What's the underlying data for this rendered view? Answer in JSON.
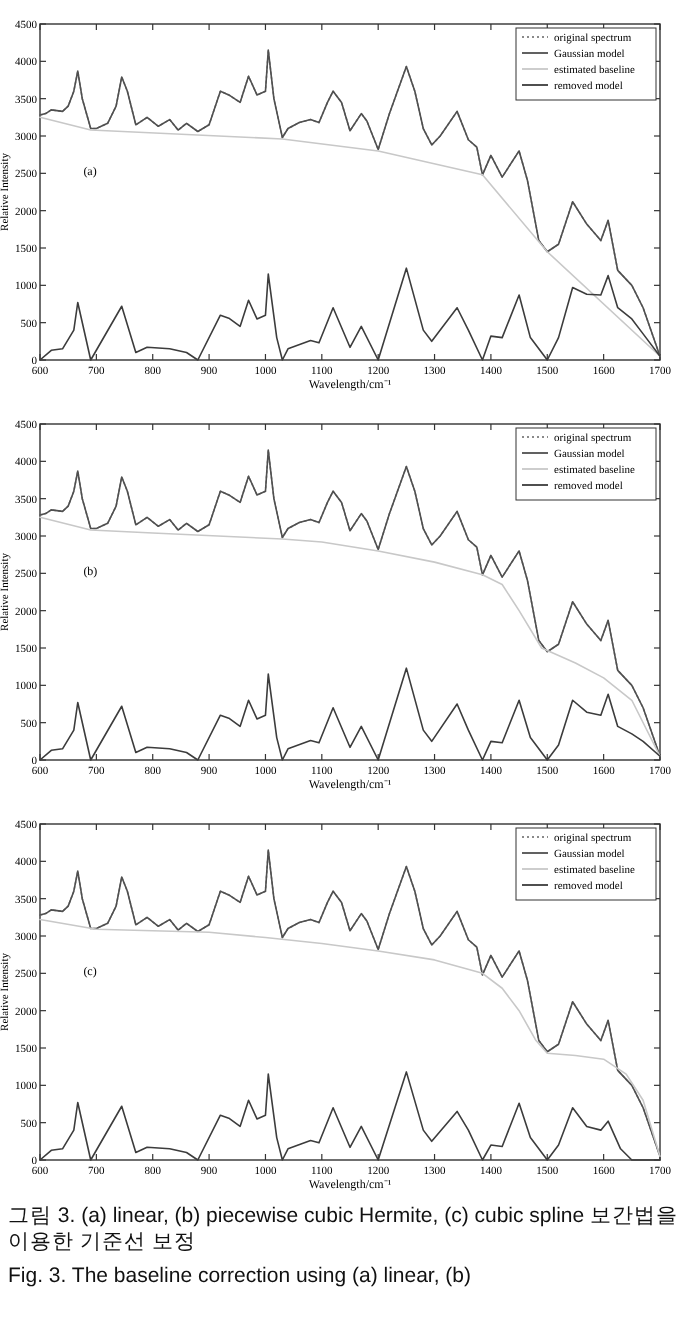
{
  "chart_data": [
    {
      "type": "line",
      "xlabel": "Wavelength/cm⁻¹",
      "ylabel": "Relative Intensity",
      "xlim": [
        600,
        1700
      ],
      "ylim": [
        0,
        4500
      ],
      "xticks": [
        600,
        700,
        800,
        900,
        1000,
        1100,
        1200,
        1300,
        1400,
        1500,
        1600,
        1700
      ],
      "yticks": [
        0,
        500,
        1000,
        1500,
        2000,
        2500,
        3000,
        3500,
        4000,
        4500
      ],
      "legend": "top right",
      "grid": false,
      "annotations": [
        "(a)"
      ],
      "series": [
        {
          "name": "original spectrum",
          "color": "#8a8a8a",
          "line_style": "dotted",
          "x": [
            600,
            610,
            620,
            640,
            650,
            660,
            667,
            675,
            690,
            700,
            720,
            735,
            745,
            755,
            770,
            790,
            810,
            830,
            845,
            860,
            880,
            900,
            920,
            935,
            955,
            970,
            985,
            1000,
            1005,
            1015,
            1030,
            1040,
            1060,
            1080,
            1095,
            1110,
            1120,
            1135,
            1150,
            1170,
            1180,
            1200,
            1220,
            1250,
            1265,
            1280,
            1295,
            1310,
            1340,
            1360,
            1375,
            1385,
            1400,
            1420,
            1450,
            1465,
            1485,
            1500,
            1520,
            1545,
            1570,
            1595,
            1608,
            1625,
            1650,
            1670,
            1700
          ],
          "values": [
            3280,
            3300,
            3350,
            3330,
            3400,
            3600,
            3870,
            3500,
            3100,
            3100,
            3170,
            3400,
            3790,
            3600,
            3150,
            3250,
            3130,
            3220,
            3080,
            3170,
            3060,
            3150,
            3600,
            3550,
            3450,
            3800,
            3550,
            3600,
            4150,
            3500,
            2980,
            3100,
            3180,
            3220,
            3180,
            3450,
            3600,
            3450,
            3070,
            3300,
            3200,
            2820,
            3300,
            3930,
            3600,
            3100,
            2880,
            3000,
            3330,
            2950,
            2850,
            2480,
            2740,
            2450,
            2800,
            2400,
            1600,
            1450,
            1550,
            2120,
            1820,
            1600,
            1870,
            1200,
            1000,
            700,
            50
          ]
        },
        {
          "name": "Gaussian model",
          "color": "#505050",
          "line_style": "solid",
          "x": [
            600,
            610,
            620,
            640,
            650,
            660,
            667,
            675,
            690,
            700,
            720,
            735,
            745,
            755,
            770,
            790,
            810,
            830,
            845,
            860,
            880,
            900,
            920,
            935,
            955,
            970,
            985,
            1000,
            1005,
            1015,
            1030,
            1040,
            1060,
            1080,
            1095,
            1110,
            1120,
            1135,
            1150,
            1170,
            1180,
            1200,
            1220,
            1250,
            1265,
            1280,
            1295,
            1310,
            1340,
            1360,
            1375,
            1385,
            1400,
            1420,
            1450,
            1465,
            1485,
            1500,
            1520,
            1545,
            1570,
            1595,
            1608,
            1625,
            1650,
            1670,
            1700
          ],
          "values": [
            3280,
            3300,
            3350,
            3330,
            3400,
            3600,
            3870,
            3500,
            3100,
            3100,
            3170,
            3400,
            3790,
            3600,
            3150,
            3250,
            3130,
            3220,
            3080,
            3170,
            3060,
            3150,
            3600,
            3550,
            3450,
            3800,
            3550,
            3600,
            4150,
            3500,
            2980,
            3100,
            3180,
            3220,
            3180,
            3450,
            3600,
            3450,
            3070,
            3300,
            3200,
            2820,
            3300,
            3930,
            3600,
            3100,
            2880,
            3000,
            3330,
            2950,
            2850,
            2480,
            2740,
            2450,
            2800,
            2400,
            1600,
            1450,
            1550,
            2120,
            1820,
            1600,
            1870,
            1200,
            1000,
            700,
            50
          ]
        },
        {
          "name": "estimated baseline",
          "color": "#c8c8c8",
          "line_style": "solid",
          "x": [
            600,
            690,
            1030,
            1200,
            1385,
            1500,
            1700
          ],
          "values": [
            3250,
            3080,
            2960,
            2800,
            2480,
            1450,
            50
          ]
        },
        {
          "name": "removed model",
          "color": "#3c3c3c",
          "line_style": "solid",
          "x": [
            600,
            620,
            640,
            660,
            667,
            690,
            745,
            770,
            790,
            830,
            860,
            880,
            920,
            935,
            955,
            970,
            985,
            1000,
            1005,
            1020,
            1030,
            1040,
            1080,
            1095,
            1120,
            1150,
            1170,
            1200,
            1250,
            1280,
            1295,
            1340,
            1360,
            1385,
            1400,
            1420,
            1450,
            1470,
            1500,
            1520,
            1545,
            1570,
            1595,
            1608,
            1625,
            1650,
            1670,
            1700
          ],
          "values": [
            0,
            130,
            150,
            400,
            770,
            0,
            720,
            100,
            170,
            150,
            100,
            0,
            600,
            560,
            450,
            800,
            550,
            600,
            1150,
            300,
            0,
            150,
            260,
            230,
            700,
            170,
            450,
            0,
            1230,
            400,
            250,
            700,
            400,
            0,
            320,
            300,
            870,
            300,
            0,
            300,
            970,
            880,
            870,
            1130,
            700,
            550,
            350,
            50
          ]
        }
      ]
    },
    {
      "type": "line",
      "xlabel": "Wavelength/cm⁻¹",
      "ylabel": "Relative Intensity",
      "xlim": [
        600,
        1700
      ],
      "ylim": [
        0,
        4500
      ],
      "xticks": [
        600,
        700,
        800,
        900,
        1000,
        1100,
        1200,
        1300,
        1400,
        1500,
        1600,
        1700
      ],
      "yticks": [
        0,
        500,
        1000,
        1500,
        2000,
        2500,
        3000,
        3500,
        4000,
        4500
      ],
      "legend": "top right",
      "grid": false,
      "annotations": [
        "(b)"
      ],
      "series": [
        {
          "name": "original spectrum",
          "color": "#8a8a8a",
          "line_style": "dotted",
          "x": [
            600,
            610,
            620,
            640,
            650,
            660,
            667,
            675,
            690,
            700,
            720,
            735,
            745,
            755,
            770,
            790,
            810,
            830,
            845,
            860,
            880,
            900,
            920,
            935,
            955,
            970,
            985,
            1000,
            1005,
            1015,
            1030,
            1040,
            1060,
            1080,
            1095,
            1110,
            1120,
            1135,
            1150,
            1170,
            1180,
            1200,
            1220,
            1250,
            1265,
            1280,
            1295,
            1310,
            1340,
            1360,
            1375,
            1385,
            1400,
            1420,
            1450,
            1465,
            1485,
            1500,
            1520,
            1545,
            1570,
            1595,
            1608,
            1625,
            1650,
            1670,
            1700
          ],
          "values": [
            3280,
            3300,
            3350,
            3330,
            3400,
            3600,
            3870,
            3500,
            3100,
            3100,
            3170,
            3400,
            3790,
            3600,
            3150,
            3250,
            3130,
            3220,
            3080,
            3170,
            3060,
            3150,
            3600,
            3550,
            3450,
            3800,
            3550,
            3600,
            4150,
            3500,
            2980,
            3100,
            3180,
            3220,
            3180,
            3450,
            3600,
            3450,
            3070,
            3300,
            3200,
            2820,
            3300,
            3930,
            3600,
            3100,
            2880,
            3000,
            3330,
            2950,
            2850,
            2480,
            2740,
            2450,
            2800,
            2400,
            1600,
            1450,
            1550,
            2120,
            1820,
            1600,
            1870,
            1200,
            1000,
            700,
            50
          ]
        },
        {
          "name": "Gaussian model",
          "color": "#505050",
          "line_style": "solid",
          "x": [
            600,
            610,
            620,
            640,
            650,
            660,
            667,
            675,
            690,
            700,
            720,
            735,
            745,
            755,
            770,
            790,
            810,
            830,
            845,
            860,
            880,
            900,
            920,
            935,
            955,
            970,
            985,
            1000,
            1005,
            1015,
            1030,
            1040,
            1060,
            1080,
            1095,
            1110,
            1120,
            1135,
            1150,
            1170,
            1180,
            1200,
            1220,
            1250,
            1265,
            1280,
            1295,
            1310,
            1340,
            1360,
            1375,
            1385,
            1400,
            1420,
            1450,
            1465,
            1485,
            1500,
            1520,
            1545,
            1570,
            1595,
            1608,
            1625,
            1650,
            1670,
            1700
          ],
          "values": [
            3280,
            3300,
            3350,
            3330,
            3400,
            3600,
            3870,
            3500,
            3100,
            3100,
            3170,
            3400,
            3790,
            3600,
            3150,
            3250,
            3130,
            3220,
            3080,
            3170,
            3060,
            3150,
            3600,
            3550,
            3450,
            3800,
            3550,
            3600,
            4150,
            3500,
            2980,
            3100,
            3180,
            3220,
            3180,
            3450,
            3600,
            3450,
            3070,
            3300,
            3200,
            2820,
            3300,
            3930,
            3600,
            3100,
            2880,
            3000,
            3330,
            2950,
            2850,
            2480,
            2740,
            2450,
            2800,
            2400,
            1600,
            1450,
            1550,
            2120,
            1820,
            1600,
            1870,
            1200,
            1000,
            700,
            50
          ]
        },
        {
          "name": "estimated baseline",
          "color": "#c8c8c8",
          "line_style": "solid",
          "x": [
            600,
            690,
            800,
            1030,
            1100,
            1200,
            1300,
            1385,
            1420,
            1450,
            1490,
            1550,
            1600,
            1650,
            1700
          ],
          "values": [
            3250,
            3080,
            3040,
            2960,
            2920,
            2800,
            2650,
            2480,
            2350,
            2000,
            1500,
            1300,
            1100,
            800,
            50
          ]
        },
        {
          "name": "removed model",
          "color": "#3c3c3c",
          "line_style": "solid",
          "x": [
            600,
            620,
            640,
            660,
            667,
            690,
            745,
            770,
            790,
            830,
            860,
            880,
            920,
            935,
            955,
            970,
            985,
            1000,
            1005,
            1020,
            1030,
            1040,
            1080,
            1095,
            1120,
            1150,
            1170,
            1200,
            1250,
            1280,
            1295,
            1340,
            1360,
            1385,
            1400,
            1420,
            1450,
            1470,
            1500,
            1520,
            1545,
            1570,
            1595,
            1608,
            1625,
            1650,
            1670,
            1700
          ],
          "values": [
            0,
            130,
            150,
            400,
            770,
            0,
            720,
            100,
            170,
            150,
            100,
            0,
            600,
            560,
            450,
            800,
            550,
            600,
            1150,
            300,
            0,
            150,
            260,
            230,
            700,
            170,
            450,
            0,
            1230,
            400,
            250,
            750,
            400,
            0,
            250,
            230,
            800,
            300,
            0,
            200,
            800,
            640,
            600,
            880,
            450,
            350,
            250,
            50
          ]
        }
      ]
    },
    {
      "type": "line",
      "xlabel": "Wavelength/cm⁻¹",
      "ylabel": "Relative Intensity",
      "xlim": [
        600,
        1700
      ],
      "ylim": [
        0,
        4500
      ],
      "xticks": [
        600,
        700,
        800,
        900,
        1000,
        1100,
        1200,
        1300,
        1400,
        1500,
        1600,
        1700
      ],
      "yticks": [
        0,
        500,
        1000,
        1500,
        2000,
        2500,
        3000,
        3500,
        4000,
        4500
      ],
      "legend": "top right",
      "grid": false,
      "annotations": [
        "(c)",
        "그림 3.  (a) linear, (b) piecewise cubic Hermite, (c) cubic spline 보간법을 이용한 기준선 보정",
        "Fig. 3.  The baseline correction using (a) linear, (b)"
      ],
      "series": [
        {
          "name": "original spectrum",
          "color": "#8a8a8a",
          "line_style": "dotted",
          "x": [
            600,
            610,
            620,
            640,
            650,
            660,
            667,
            675,
            690,
            700,
            720,
            735,
            745,
            755,
            770,
            790,
            810,
            830,
            845,
            860,
            880,
            900,
            920,
            935,
            955,
            970,
            985,
            1000,
            1005,
            1015,
            1030,
            1040,
            1060,
            1080,
            1095,
            1110,
            1120,
            1135,
            1150,
            1170,
            1180,
            1200,
            1220,
            1250,
            1265,
            1280,
            1295,
            1310,
            1340,
            1360,
            1375,
            1385,
            1400,
            1420,
            1450,
            1465,
            1485,
            1500,
            1520,
            1545,
            1570,
            1595,
            1608,
            1625,
            1650,
            1670,
            1700
          ],
          "values": [
            3280,
            3300,
            3350,
            3330,
            3400,
            3600,
            3870,
            3500,
            3100,
            3100,
            3170,
            3400,
            3790,
            3600,
            3150,
            3250,
            3130,
            3220,
            3080,
            3170,
            3060,
            3150,
            3600,
            3550,
            3450,
            3800,
            3550,
            3600,
            4150,
            3500,
            2980,
            3100,
            3180,
            3220,
            3180,
            3450,
            3600,
            3450,
            3070,
            3300,
            3200,
            2820,
            3300,
            3930,
            3600,
            3100,
            2880,
            3000,
            3330,
            2950,
            2850,
            2480,
            2740,
            2450,
            2800,
            2400,
            1600,
            1450,
            1550,
            2120,
            1820,
            1600,
            1870,
            1200,
            1000,
            700,
            50
          ]
        },
        {
          "name": "Gaussian model",
          "color": "#505050",
          "line_style": "solid",
          "x": [
            600,
            610,
            620,
            640,
            650,
            660,
            667,
            675,
            690,
            700,
            720,
            735,
            745,
            755,
            770,
            790,
            810,
            830,
            845,
            860,
            880,
            900,
            920,
            935,
            955,
            970,
            985,
            1000,
            1005,
            1015,
            1030,
            1040,
            1060,
            1080,
            1095,
            1110,
            1120,
            1135,
            1150,
            1170,
            1180,
            1200,
            1220,
            1250,
            1265,
            1280,
            1295,
            1310,
            1340,
            1360,
            1375,
            1385,
            1400,
            1420,
            1450,
            1465,
            1485,
            1500,
            1520,
            1545,
            1570,
            1595,
            1608,
            1625,
            1650,
            1670,
            1700
          ],
          "values": [
            3280,
            3300,
            3350,
            3330,
            3400,
            3600,
            3870,
            3500,
            3100,
            3100,
            3170,
            3400,
            3790,
            3600,
            3150,
            3250,
            3130,
            3220,
            3080,
            3170,
            3060,
            3150,
            3600,
            3550,
            3450,
            3800,
            3550,
            3600,
            4150,
            3500,
            2980,
            3100,
            3180,
            3220,
            3180,
            3450,
            3600,
            3450,
            3070,
            3300,
            3200,
            2820,
            3300,
            3930,
            3600,
            3100,
            2880,
            3000,
            3330,
            2950,
            2850,
            2480,
            2740,
            2450,
            2800,
            2400,
            1600,
            1450,
            1550,
            2120,
            1820,
            1600,
            1870,
            1200,
            1000,
            700,
            50
          ]
        },
        {
          "name": "estimated baseline",
          "color": "#c8c8c8",
          "line_style": "solid",
          "x": [
            600,
            700,
            800,
            900,
            1000,
            1100,
            1200,
            1300,
            1385,
            1420,
            1450,
            1480,
            1500,
            1550,
            1600,
            1640,
            1670,
            1700
          ],
          "values": [
            3220,
            3090,
            3070,
            3050,
            2980,
            2900,
            2800,
            2680,
            2500,
            2300,
            2000,
            1600,
            1430,
            1400,
            1350,
            1150,
            800,
            50
          ]
        },
        {
          "name": "removed model",
          "color": "#3c3c3c",
          "line_style": "solid",
          "x": [
            600,
            620,
            640,
            660,
            667,
            690,
            745,
            770,
            790,
            830,
            860,
            880,
            920,
            935,
            955,
            970,
            985,
            1000,
            1005,
            1020,
            1030,
            1040,
            1080,
            1095,
            1120,
            1150,
            1170,
            1200,
            1250,
            1280,
            1295,
            1340,
            1360,
            1385,
            1400,
            1420,
            1450,
            1470,
            1500,
            1520,
            1545,
            1570,
            1595,
            1608,
            1630,
            1650,
            1700
          ],
          "values": [
            0,
            130,
            150,
            400,
            770,
            0,
            720,
            100,
            170,
            150,
            100,
            0,
            600,
            560,
            450,
            800,
            550,
            600,
            1150,
            300,
            0,
            150,
            260,
            230,
            700,
            170,
            450,
            0,
            1180,
            400,
            250,
            650,
            400,
            0,
            200,
            180,
            760,
            300,
            0,
            200,
            700,
            450,
            400,
            520,
            150,
            0,
            0
          ]
        }
      ]
    }
  ]
}
